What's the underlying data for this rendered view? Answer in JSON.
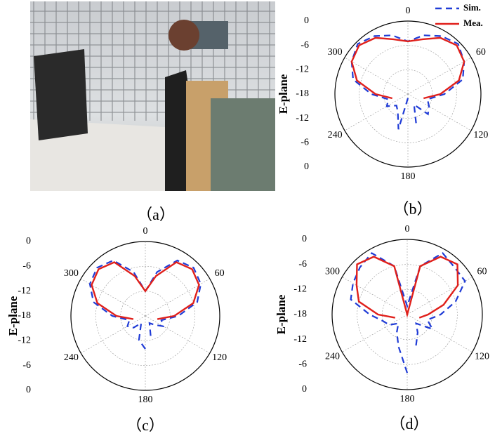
{
  "captions": [
    "（a）",
    "（b）",
    "（c）",
    "（d）"
  ],
  "chart_data": [
    {
      "type": "polar",
      "ylabel": "E-plane",
      "legend": true,
      "legend_position": "upper right",
      "x": [
        180,
        195,
        210,
        225,
        240,
        255,
        270,
        285,
        300,
        315,
        330,
        345,
        0,
        15,
        30,
        45,
        60,
        75,
        90,
        105,
        120,
        135,
        150,
        165
      ],
      "rlim": [
        -18,
        0
      ],
      "rticks": [
        -18,
        -12,
        -6,
        0
      ],
      "xticks": [
        0,
        60,
        120,
        180,
        240,
        300
      ],
      "series": [
        {
          "name": "Sim.",
          "color": "#1f3bd6",
          "dash": true,
          "values": [
            -17,
            -9,
            -13,
            -14,
            -12,
            -13,
            -9,
            -4,
            -2,
            -0.5,
            -1.5,
            -3,
            -5,
            -3,
            -1.5,
            -0.5,
            -2,
            -4,
            -9,
            -13,
            -12,
            -11,
            -15,
            -10
          ]
        },
        {
          "name": "Mea.",
          "color": "#e0201b",
          "dash": false,
          "values": [
            null,
            null,
            null,
            null,
            null,
            -14,
            -10,
            -5,
            -2,
            -1,
            -2,
            -4,
            -5,
            -4,
            -2,
            -1,
            -2,
            -5,
            -10,
            -14,
            null,
            null,
            null,
            null
          ]
        }
      ]
    },
    {
      "type": "polar",
      "ylabel": "E-plane",
      "legend": false,
      "x": [
        180,
        195,
        210,
        225,
        240,
        255,
        270,
        285,
        300,
        315,
        330,
        345,
        0,
        15,
        30,
        45,
        60,
        75,
        90,
        105,
        120,
        135,
        150,
        165
      ],
      "rlim": [
        -18,
        0
      ],
      "rticks": [
        -18,
        -12,
        -6,
        0
      ],
      "xticks": [
        0,
        60,
        120,
        180,
        240,
        300
      ],
      "series": [
        {
          "color": "#1f3bd6",
          "dash": true,
          "values": [
            -10,
            -12,
            -16,
            -14,
            -13,
            -14,
            -10,
            -5,
            -2.5,
            -1.5,
            -2.5,
            -7,
            -12,
            -7,
            -2.5,
            -1.5,
            -2.5,
            -5,
            -10,
            -14,
            -13,
            -15,
            -16,
            -13
          ]
        },
        {
          "color": "#e0201b",
          "dash": false,
          "values": [
            null,
            null,
            null,
            null,
            null,
            -15,
            -11,
            -6,
            -3,
            -2,
            -3,
            -8,
            -12,
            -8,
            -3,
            -2,
            -3,
            -6,
            -11,
            -15,
            null,
            null,
            null,
            null
          ]
        }
      ]
    },
    {
      "type": "polar",
      "ylabel": "E-plane",
      "legend": false,
      "x": [
        180,
        195,
        210,
        225,
        240,
        255,
        270,
        285,
        300,
        315,
        330,
        345,
        0,
        15,
        30,
        45,
        60,
        75,
        90,
        105,
        120,
        135,
        150,
        165
      ],
      "rlim": [
        -18,
        0
      ],
      "rticks": [
        -18,
        -12,
        -6,
        0
      ],
      "xticks": [
        0,
        60,
        120,
        180,
        240,
        300
      ],
      "series": [
        {
          "color": "#1f3bd6",
          "dash": true,
          "values": [
            -4,
            -10,
            -13,
            -15,
            -13,
            -12,
            -9,
            -4,
            -3,
            -2,
            -1,
            -6,
            -16,
            -6,
            -1,
            -2,
            -2,
            -6,
            -10,
            -13,
            -11,
            -15,
            -13,
            -10
          ]
        },
        {
          "color": "#e0201b",
          "dash": false,
          "values": [
            null,
            null,
            null,
            null,
            null,
            -15,
            -11,
            -6,
            -4,
            -1,
            -2,
            -6,
            -18,
            -6,
            -2,
            -1,
            -4,
            -9,
            -13,
            -15,
            null,
            null,
            null,
            null
          ]
        }
      ]
    }
  ]
}
